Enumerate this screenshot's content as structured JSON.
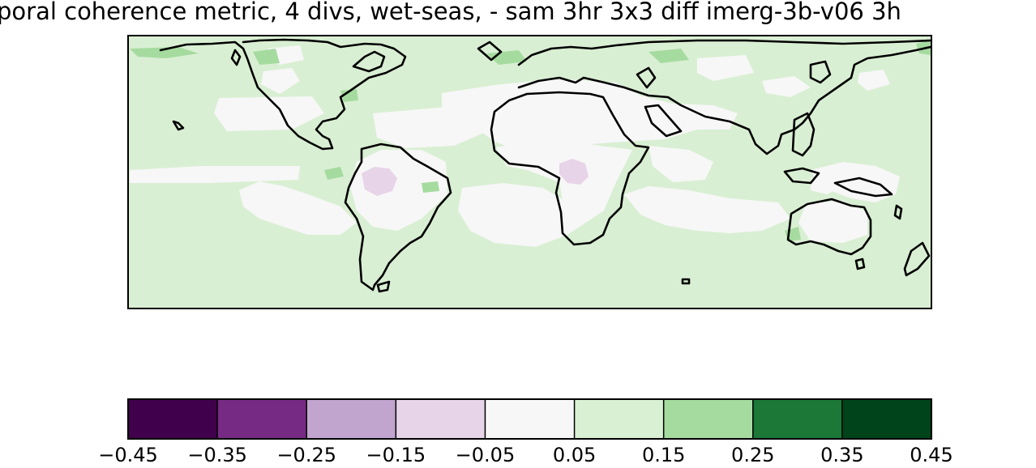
{
  "title": "poral coherence metric, 4 divs, wet-seas,  - sam 3hr 3x3 diff imerg-3b-v06 3h",
  "colors": {
    "background_field": "#d9efd3",
    "near_zero": "#f7f7f7",
    "light_purple": "#e7d4e8",
    "mid_green": "#a6dba0",
    "coastline": "#000000"
  },
  "colorbar": {
    "ticks": [
      "−0.45",
      "−0.35",
      "−0.25",
      "−0.15",
      "−0.05",
      "0.05",
      "0.15",
      "0.25",
      "0.35",
      "0.45"
    ],
    "bins": [
      {
        "from": -0.45,
        "to": -0.35,
        "color": "#40004b"
      },
      {
        "from": -0.35,
        "to": -0.25,
        "color": "#762a83"
      },
      {
        "from": -0.25,
        "to": -0.15,
        "color": "#c2a5cf"
      },
      {
        "from": -0.15,
        "to": -0.05,
        "color": "#e7d4e8"
      },
      {
        "from": -0.05,
        "to": 0.05,
        "color": "#f7f7f7"
      },
      {
        "from": 0.05,
        "to": 0.15,
        "color": "#d9f0d3"
      },
      {
        "from": 0.15,
        "to": 0.25,
        "color": "#a6dba0"
      },
      {
        "from": 0.25,
        "to": 0.35,
        "color": "#1b7837"
      },
      {
        "from": 0.35,
        "to": 0.45,
        "color": "#00441b"
      }
    ]
  }
}
